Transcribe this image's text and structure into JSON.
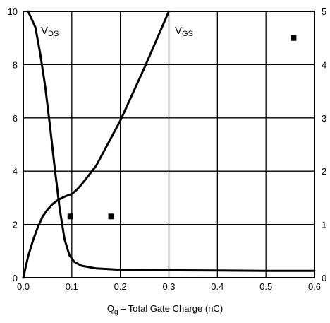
{
  "chart_data": {
    "type": "line",
    "xlabel": {
      "prefix": "Q",
      "sub": "g",
      "rest": " – Total Gate Charge (nC)"
    },
    "xlim": [
      0.0,
      0.6
    ],
    "ylim_left": [
      0,
      10
    ],
    "ylim_right": [
      0,
      5
    ],
    "x_ticks": [
      "0.0",
      "0.1",
      "0.2",
      "0.3",
      "0.4",
      "0.5",
      "0.6"
    ],
    "y_ticks_left": [
      "0",
      "2",
      "4",
      "6",
      "8",
      "10"
    ],
    "y_ticks_right": [
      "0",
      "1",
      "2",
      "3",
      "4",
      "5"
    ],
    "grid": true,
    "series": [
      {
        "name_main": "V",
        "name_sub": "DS",
        "axis": "left",
        "x": [
          0.01,
          0.025,
          0.035,
          0.045,
          0.055,
          0.065,
          0.075,
          0.085,
          0.095,
          0.105,
          0.12,
          0.15,
          0.2,
          0.3,
          0.4,
          0.5,
          0.6
        ],
        "y": [
          10.0,
          9.4,
          8.4,
          7.2,
          5.7,
          4.1,
          2.6,
          1.45,
          0.85,
          0.6,
          0.45,
          0.35,
          0.3,
          0.28,
          0.27,
          0.26,
          0.26
        ]
      },
      {
        "name_main": "V",
        "name_sub": "GS",
        "axis": "right",
        "x": [
          0.0,
          0.01,
          0.02,
          0.03,
          0.04,
          0.05,
          0.06,
          0.07,
          0.08,
          0.09,
          0.1,
          0.11,
          0.12,
          0.15,
          0.2,
          0.25,
          0.3
        ],
        "y": [
          0.0,
          0.4,
          0.7,
          0.95,
          1.15,
          1.28,
          1.38,
          1.45,
          1.5,
          1.54,
          1.57,
          1.65,
          1.75,
          2.1,
          2.95,
          3.95,
          5.0
        ]
      }
    ],
    "markers": [
      {
        "x": 0.097,
        "y": 2.3,
        "axis": "left"
      },
      {
        "x": 0.181,
        "y": 2.3,
        "axis": "left"
      },
      {
        "x": 0.557,
        "y": 9.0,
        "axis": "left"
      }
    ]
  }
}
